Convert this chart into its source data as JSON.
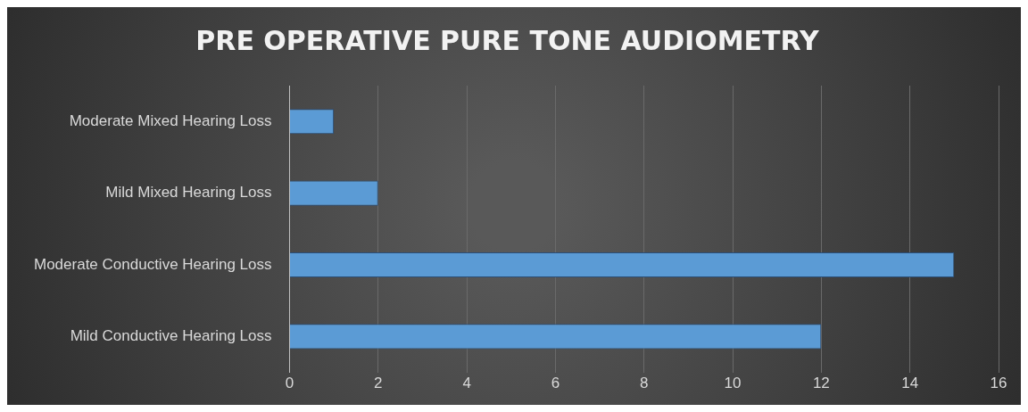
{
  "chart_data": {
    "type": "bar",
    "orientation": "horizontal",
    "title": "PRE OPERATIVE PURE TONE AUDIOMETRY",
    "categories": [
      "Moderate Mixed Hearing Loss",
      "Mild Mixed Hearing Loss",
      "Moderate Conductive Hearing Loss",
      "Mild Conductive Hearing Loss"
    ],
    "values": [
      1,
      2,
      15,
      12
    ],
    "color": "#5b9bd5",
    "xlim": [
      0,
      16
    ],
    "xticks": [
      0,
      2,
      4,
      6,
      8,
      10,
      12,
      14,
      16
    ],
    "grid": "x",
    "legend": false
  }
}
